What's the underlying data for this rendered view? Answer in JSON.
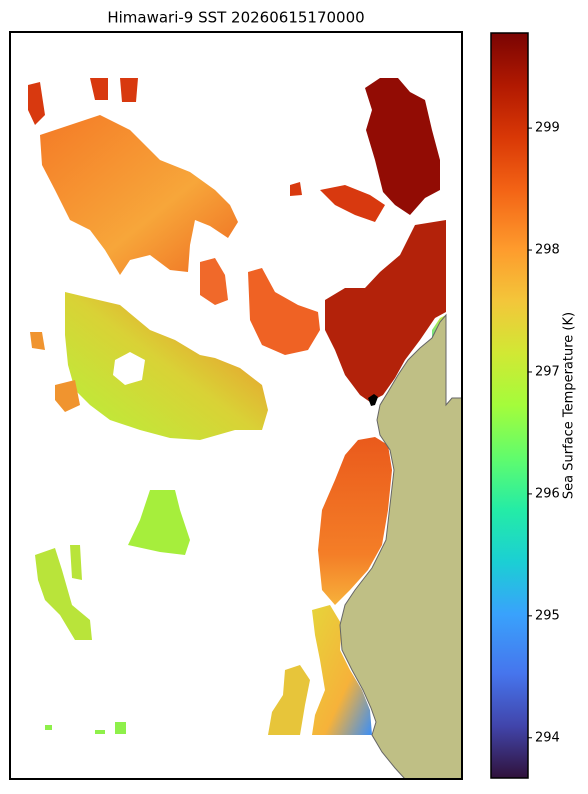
{
  "chart_data": {
    "type": "heatmap",
    "title": "Himawari-9 SST 20260615170000",
    "colormap": "turbo",
    "colorbar": {
      "label": "Sea Surface Temperature (K)",
      "lim": [
        293.67,
        299.78
      ],
      "ticks": [
        294,
        295,
        296,
        297,
        298,
        299
      ]
    }
  }
}
